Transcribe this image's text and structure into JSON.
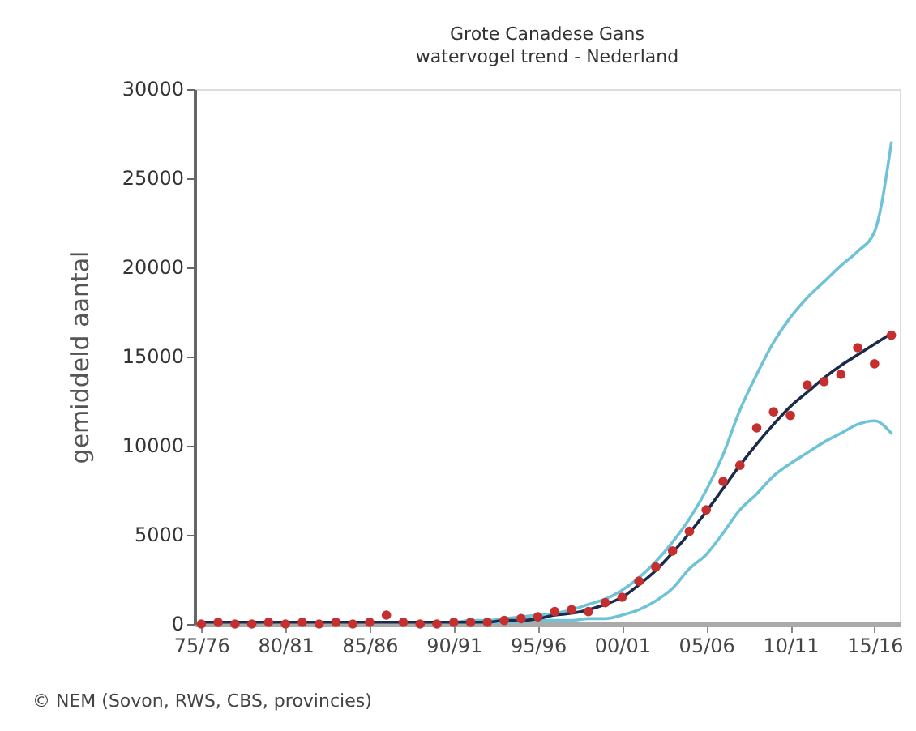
{
  "chart_data": {
    "type": "line",
    "title": "Grote Canadese Gans",
    "subtitle": "watervogel trend - Nederland",
    "ylabel": "gemiddeld aantal",
    "categories": [
      "75/76",
      null,
      null,
      null,
      null,
      "80/81",
      null,
      null,
      null,
      null,
      "85/86",
      null,
      null,
      null,
      null,
      "90/91",
      null,
      null,
      null,
      null,
      "95/96",
      null,
      null,
      null,
      null,
      "00/01",
      null,
      null,
      null,
      null,
      "05/06",
      null,
      null,
      null,
      null,
      "10/11",
      null,
      null,
      null,
      null,
      "15/16",
      null
    ],
    "ylim": [
      0,
      30000
    ],
    "yticks": [
      0,
      5000,
      10000,
      15000,
      20000,
      25000,
      30000
    ],
    "series": [
      {
        "color": "#6fc3d6",
        "values": [
          null,
          null,
          null,
          null,
          null,
          null,
          null,
          null,
          null,
          null,
          null,
          null,
          null,
          null,
          100,
          100,
          200,
          200,
          300,
          400,
          500,
          600,
          800,
          1100,
          1400,
          1900,
          2600,
          3500,
          4600,
          5900,
          7500,
          9500,
          12000,
          14000,
          15800,
          17200,
          18300,
          19200,
          20100,
          20900,
          22000,
          27000
        ]
      },
      {
        "color": "#6fc3d6",
        "values": [
          null,
          null,
          null,
          null,
          null,
          null,
          null,
          null,
          null,
          null,
          null,
          null,
          null,
          null,
          0,
          0,
          0,
          0,
          100,
          100,
          200,
          200,
          200,
          300,
          300,
          500,
          800,
          1300,
          2000,
          3100,
          3900,
          5100,
          6400,
          7300,
          8300,
          9000,
          9600,
          10200,
          10700,
          11200,
          11400,
          10700
        ]
      },
      {
        "color": "#1c2b4a",
        "values": [
          100,
          100,
          100,
          100,
          100,
          100,
          100,
          100,
          100,
          100,
          100,
          100,
          100,
          100,
          100,
          100,
          100,
          100,
          200,
          200,
          300,
          500,
          600,
          800,
          1100,
          1500,
          2200,
          3000,
          4000,
          5100,
          6300,
          7600,
          8900,
          10100,
          11200,
          12200,
          13000,
          13800,
          14500,
          15100,
          15700,
          16300
        ]
      },
      {
        "type": "scatter",
        "marker": "circle",
        "color": "#c62f2f",
        "values": [
          0,
          100,
          0,
          0,
          100,
          0,
          100,
          0,
          100,
          0,
          100,
          500,
          100,
          0,
          0,
          100,
          100,
          100,
          200,
          300,
          400,
          700,
          800,
          700,
          1200,
          1500,
          2400,
          3200,
          4100,
          5200,
          6400,
          8000,
          8900,
          11000,
          11900,
          11700,
          13400,
          13600,
          14000,
          15500,
          14600,
          16200
        ]
      }
    ],
    "annotations": [
      "© NEM (Sovon, RWS, CBS, provincies)"
    ]
  }
}
